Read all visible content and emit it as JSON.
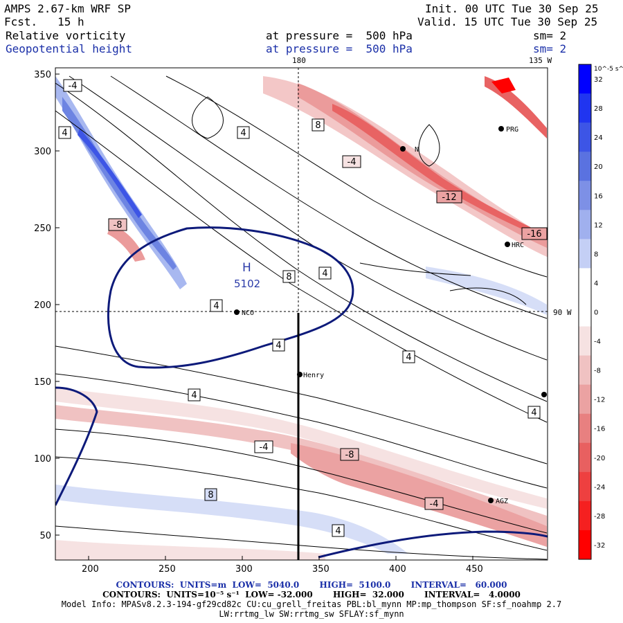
{
  "header": {
    "model": "AMPS 2.67-km WRF SP",
    "fcst": "Fcst.   15 h",
    "init": "Init. 00 UTC Tue 30 Sep 25",
    "valid": "Valid. 15 UTC Tue 30 Sep 25",
    "field1_name": "Relative vorticity",
    "field1_level": "at pressure =  500 hPa",
    "field1_sm": "sm= 2",
    "field2_name": "Geopotential height",
    "field2_level": "at pressure =  500 hPa",
    "field2_sm": "sm= 2"
  },
  "map": {
    "top_lon_label_180": "180",
    "top_lon_label_135w": "135 W",
    "side_lon_label_90w": "90 W",
    "x_ticks": [
      "200",
      "250",
      "300",
      "350",
      "400",
      "450"
    ],
    "y_ticks": [
      "350",
      "300",
      "250",
      "200",
      "150",
      "100",
      "50"
    ],
    "stations": [
      "NCO",
      "Henry",
      "HRC",
      "AGZ",
      "PRG",
      "N"
    ],
    "high_label": "H",
    "high_value": "5102",
    "contour_labels": [
      "-4",
      "4",
      "8",
      "-8",
      "-12",
      "-16",
      "-4",
      "4",
      "8",
      "4",
      "4",
      "4",
      "4",
      "-8",
      "-4",
      "8",
      "-4",
      "4",
      "4",
      "4"
    ]
  },
  "colorbar": {
    "units": "10^-5 s^-1",
    "ticks": [
      "32",
      "28",
      "24",
      "20",
      "16",
      "12",
      "8",
      "4",
      "0",
      "-4",
      "-8",
      "-12",
      "-16",
      "-20",
      "-24",
      "-28",
      "-32"
    ],
    "colors": [
      "#0000ff",
      "#2035f0",
      "#3d55e6",
      "#5a72e0",
      "#7d90e6",
      "#a0b0ee",
      "#c4cff5",
      "#ffffff",
      "#ffffff",
      "#f6e2e2",
      "#f0c2c2",
      "#eba2a2",
      "#e88080",
      "#e86060",
      "#ee4040",
      "#f52020",
      "#ff0000"
    ]
  },
  "footer": {
    "line1": "CONTOURS:  UNITS=m  LOW=  5040.0       HIGH=  5100.0       INTERVAL=   60.000",
    "line2": "CONTOURS:  UNITS=10⁻⁵ s⁻¹  LOW= -32.000       HIGH=  32.000       INTERVAL=   4.0000",
    "line3": "Model Info: MPASv8.2.3-194-gf29cd82c CU:cu_grell_freitas PBL:bl_mynn MP:mp_thompson SF:sf_noahmp 2.7",
    "line4": "LW:rrtmg_lw SW:rrtmg_sw SFLAY:sf_mynn"
  }
}
